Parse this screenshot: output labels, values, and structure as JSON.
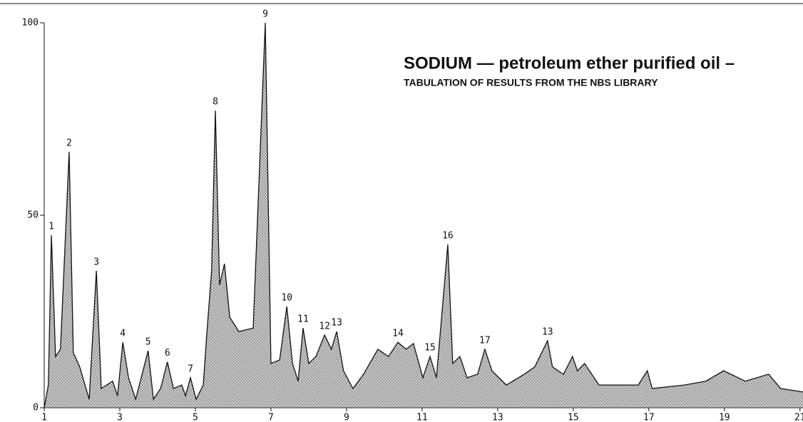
{
  "chart_data": {
    "type": "line",
    "title": "SODIUM — petroleum ether purified oil –",
    "subtitle": "TABULATION OF RESULTS FROM THE NBS LIBRARY",
    "x": [
      1.0,
      1.11,
      1.19,
      1.3,
      1.43,
      1.66,
      1.77,
      1.94,
      2.19,
      2.38,
      2.51,
      2.81,
      2.94,
      3.08,
      3.23,
      3.42,
      3.75,
      3.89,
      4.08,
      4.26,
      4.42,
      4.64,
      4.74,
      4.87,
      5.02,
      5.21,
      5.3,
      5.43,
      5.53,
      5.64,
      5.77,
      5.91,
      6.15,
      6.53,
      6.85,
      7.0,
      7.23,
      7.42,
      7.57,
      7.72,
      7.85,
      8.0,
      8.19,
      8.42,
      8.6,
      8.74,
      8.92,
      9.17,
      9.45,
      9.83,
      10.11,
      10.36,
      10.58,
      10.77,
      11.02,
      11.21,
      11.38,
      11.68,
      11.81,
      12.0,
      12.19,
      12.47,
      12.66,
      12.85,
      13.23,
      13.7,
      13.98,
      14.32,
      14.45,
      14.74,
      14.98,
      15.11,
      15.3,
      15.68,
      16.25,
      16.72,
      16.96,
      17.09,
      17.94,
      18.51,
      18.98,
      19.55,
      20.17,
      20.49,
      21.08
    ],
    "series": [
      {
        "color": "#111111",
        "values": [
          0,
          5.9,
          44.8,
          13.3,
          15.2,
          66.5,
          14.3,
          10.6,
          2.2,
          35.6,
          5.0,
          6.9,
          3.1,
          17.0,
          7.8,
          2.2,
          14.8,
          2.2,
          5.0,
          11.9,
          5.0,
          5.9,
          3.1,
          7.8,
          2.2,
          5.9,
          18.9,
          35.6,
          77.2,
          31.9,
          37.4,
          23.5,
          19.8,
          20.7,
          100,
          11.5,
          12.4,
          26.3,
          11.5,
          6.9,
          20.7,
          11.5,
          13.3,
          18.9,
          15.2,
          19.8,
          9.6,
          5.0,
          8.7,
          15.2,
          13.3,
          17.0,
          15.2,
          16.7,
          7.8,
          13.3,
          7.8,
          42.4,
          11.5,
          13.3,
          7.8,
          8.7,
          15.2,
          9.6,
          5.9,
          8.7,
          10.6,
          17.4,
          10.6,
          8.7,
          13.3,
          9.6,
          11.5,
          5.9,
          5.9,
          5.9,
          9.6,
          5.0,
          5.9,
          6.9,
          9.6,
          6.9,
          8.7,
          5.0,
          4.1
        ],
        "peak_labels": [
          null,
          null,
          "1",
          null,
          null,
          "2",
          null,
          null,
          null,
          "3",
          null,
          null,
          null,
          "4",
          null,
          null,
          "5",
          null,
          null,
          "6",
          null,
          null,
          null,
          "7",
          null,
          null,
          null,
          null,
          "8",
          null,
          null,
          null,
          null,
          null,
          "9",
          null,
          null,
          "10",
          null,
          null,
          "11",
          null,
          null,
          "12",
          null,
          "13",
          null,
          null,
          null,
          null,
          null,
          "14",
          null,
          null,
          null,
          "15",
          null,
          "16",
          null,
          null,
          null,
          null,
          "17",
          null,
          null,
          null,
          null,
          "13",
          null,
          null,
          null,
          null,
          null,
          null,
          null,
          null,
          null,
          null,
          null,
          null,
          null,
          null,
          null,
          null,
          null
        ]
      }
    ],
    "xlim": [
      1,
      21.08
    ],
    "xticks": [
      1,
      3,
      5,
      7,
      9,
      11,
      13,
      15,
      17,
      19,
      21
    ],
    "ylim": [
      0,
      100
    ],
    "yticks": [
      0,
      50,
      100
    ]
  }
}
